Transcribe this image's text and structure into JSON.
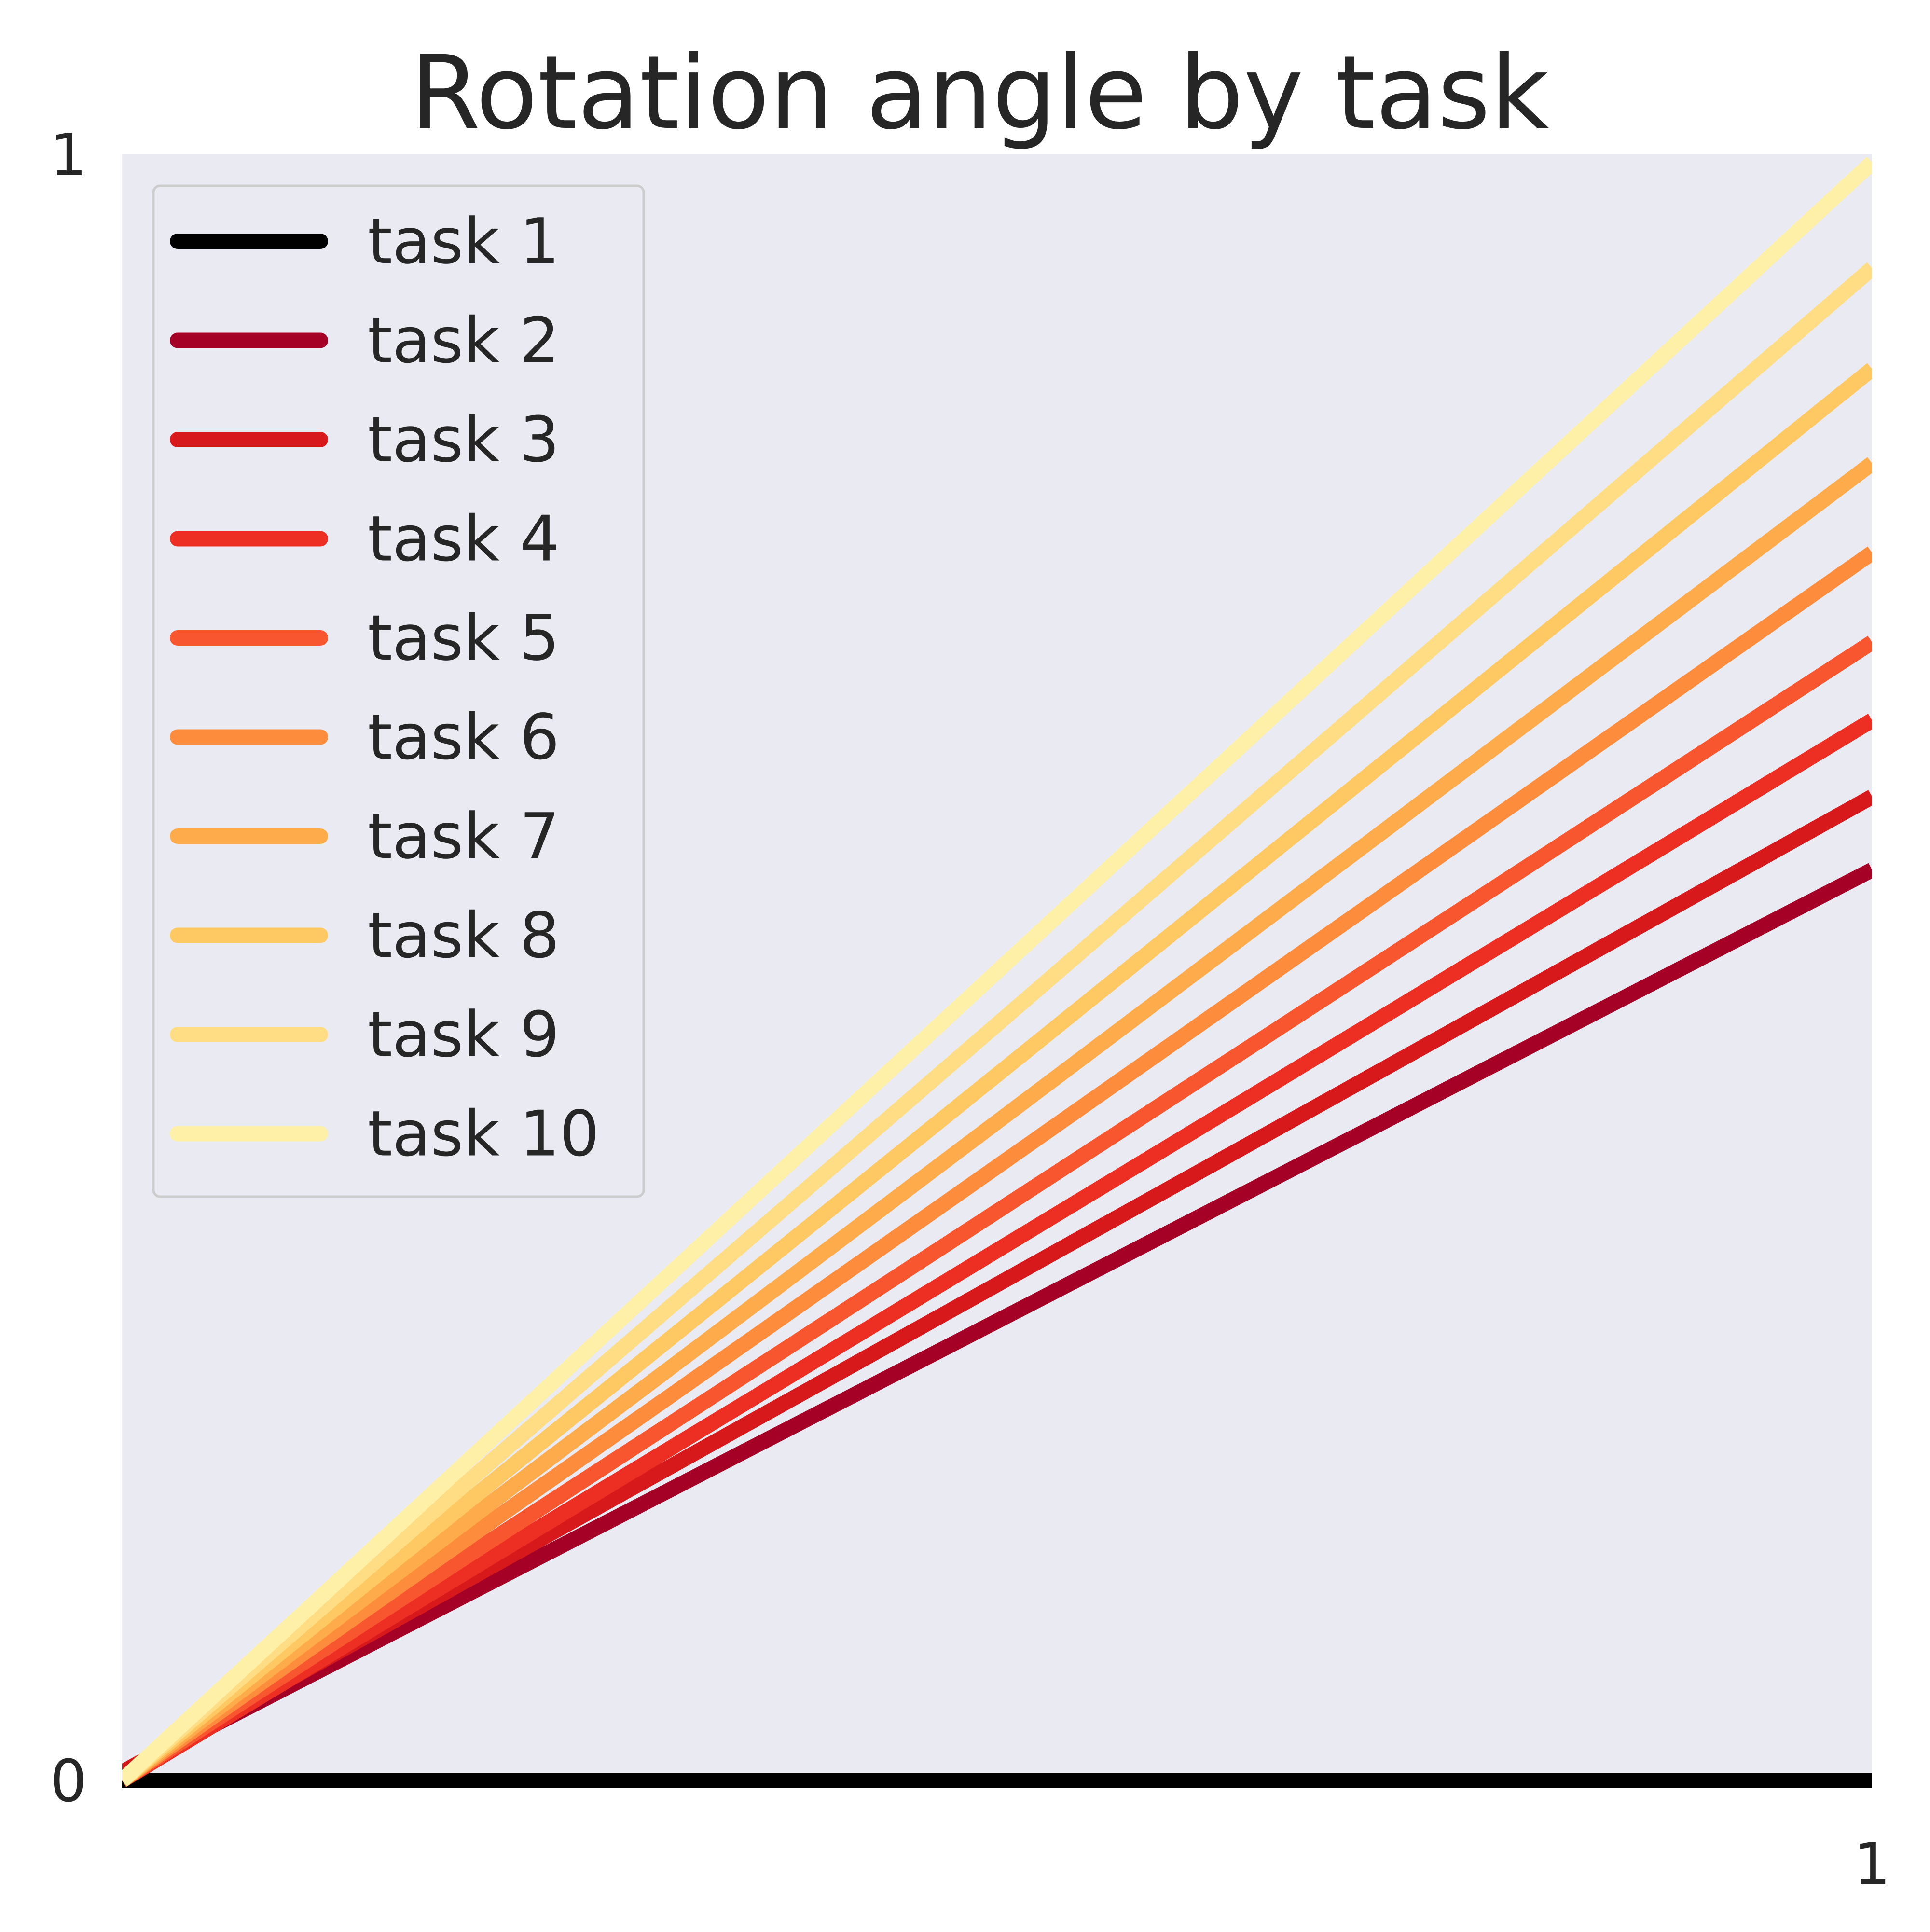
{
  "chart_data": {
    "type": "line",
    "title": "Rotation angle by task",
    "xlabel": "",
    "ylabel": "",
    "xlim": [
      0,
      1
    ],
    "ylim": [
      0,
      1
    ],
    "x_ticks": [
      "1"
    ],
    "y_ticks": [
      "0",
      "1"
    ],
    "grid": false,
    "legend_position": "top-left",
    "background_color": "#eaeaf2",
    "series": [
      {
        "name": "task 1",
        "color": "#000000",
        "x": [
          0,
          1
        ],
        "y": [
          0,
          0
        ]
      },
      {
        "name": "task 2",
        "color": "#a50026",
        "x": [
          0,
          1
        ],
        "y": [
          0.005,
          0.56
        ]
      },
      {
        "name": "task 3",
        "color": "#d7191c",
        "x": [
          0,
          1
        ],
        "y": [
          0.005,
          0.605
        ]
      },
      {
        "name": "task 4",
        "color": "#ed2f23",
        "x": [
          0,
          1
        ],
        "y": [
          0,
          0.652
        ]
      },
      {
        "name": "task 5",
        "color": "#f8562f",
        "x": [
          0,
          1
        ],
        "y": [
          0,
          0.7
        ]
      },
      {
        "name": "task 6",
        "color": "#fd8d3c",
        "x": [
          0,
          1
        ],
        "y": [
          0,
          0.755
        ]
      },
      {
        "name": "task 7",
        "color": "#feab4b",
        "x": [
          0,
          1
        ],
        "y": [
          0,
          0.81
        ]
      },
      {
        "name": "task 8",
        "color": "#fec962",
        "x": [
          0,
          1
        ],
        "y": [
          0,
          0.868
        ]
      },
      {
        "name": "task 9",
        "color": "#fedd84",
        "x": [
          0,
          1
        ],
        "y": [
          0,
          0.93
        ]
      },
      {
        "name": "task 10",
        "color": "#fff0a8",
        "x": [
          0,
          1
        ],
        "y": [
          0,
          0.995
        ]
      }
    ]
  }
}
